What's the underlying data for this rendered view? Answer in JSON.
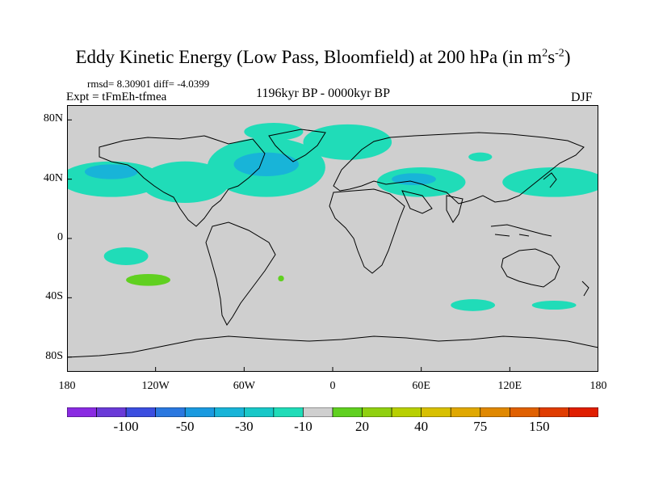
{
  "title": {
    "main": "Eddy Kinetic Energy (Low Pass, Bloomfield) at 200 hPa (in m",
    "sup1": "2",
    "mid": "s",
    "sup2": "-2",
    "end": ")"
  },
  "stats": "rmsd= 8.30901 diff= -4.0399",
  "experiment": "Expt = tFmEh-tfmea",
  "period": "1196kyr BP - 0000kyr BP",
  "season": "DJF",
  "axes": {
    "lat_ticks": [
      {
        "label": "80N",
        "value": 80
      },
      {
        "label": "40N",
        "value": 40
      },
      {
        "label": "0",
        "value": 0
      },
      {
        "label": "40S",
        "value": -40
      },
      {
        "label": "80S",
        "value": -80
      }
    ],
    "lon_ticks": [
      {
        "label": "180",
        "value": -180
      },
      {
        "label": "120W",
        "value": -120
      },
      {
        "label": "60W",
        "value": -60
      },
      {
        "label": "0",
        "value": 0
      },
      {
        "label": "60E",
        "value": 60
      },
      {
        "label": "120E",
        "value": 120
      },
      {
        "label": "180",
        "value": 180
      }
    ],
    "lat_range": [
      -90,
      90
    ],
    "lon_range": [
      -180,
      180
    ]
  },
  "colorbar": {
    "colors": [
      "#8a2be2",
      "#6a3ad8",
      "#3b4ee0",
      "#2a78e0",
      "#1a9ae0",
      "#18b4d8",
      "#18c8c8",
      "#20dcb8",
      "#cfcfcf",
      "#60d020",
      "#90d010",
      "#b8d000",
      "#d8c000",
      "#e0a800",
      "#e08800",
      "#e06000",
      "#e03c00",
      "#e01e00"
    ],
    "labels": [
      {
        "text": "-100",
        "index": 2
      },
      {
        "text": "-50",
        "index": 4
      },
      {
        "text": "-30",
        "index": 6
      },
      {
        "text": "-10",
        "index": 8
      },
      {
        "text": "20",
        "index": 10
      },
      {
        "text": "40",
        "index": 12
      },
      {
        "text": "75",
        "index": 14
      },
      {
        "text": "150",
        "index": 16
      }
    ]
  },
  "map_colors": {
    "background": "#cfcfcf",
    "cyan_light": "#20dcb8",
    "cyan_mid": "#18c8c8",
    "cyan_dark": "#18b4d8",
    "green": "#60d020",
    "coast": "#000000"
  },
  "anomaly_regions": [
    {
      "level": "cyan_light",
      "lon": -150,
      "lat": 40,
      "rlon": 35,
      "rlat": 12
    },
    {
      "level": "cyan_light",
      "lon": -100,
      "lat": 38,
      "rlon": 30,
      "rlat": 14
    },
    {
      "level": "cyan_light",
      "lon": -45,
      "lat": 48,
      "rlon": 40,
      "rlat": 20
    },
    {
      "level": "cyan_light",
      "lon": 10,
      "lat": 65,
      "rlon": 30,
      "rlat": 12
    },
    {
      "level": "cyan_light",
      "lon": 60,
      "lat": 38,
      "rlon": 30,
      "rlat": 10
    },
    {
      "level": "cyan_light",
      "lon": 150,
      "lat": 38,
      "rlon": 35,
      "rlat": 10
    },
    {
      "level": "cyan_light",
      "lon": -40,
      "lat": 72,
      "rlon": 20,
      "rlat": 6
    },
    {
      "level": "cyan_light",
      "lon": -140,
      "lat": -12,
      "rlon": 15,
      "rlat": 6
    },
    {
      "level": "cyan_light",
      "lon": 95,
      "lat": -45,
      "rlon": 15,
      "rlat": 4
    },
    {
      "level": "cyan_light",
      "lon": 150,
      "lat": -45,
      "rlon": 15,
      "rlat": 3
    },
    {
      "level": "cyan_light",
      "lon": 100,
      "lat": 55,
      "rlon": 8,
      "rlat": 3
    },
    {
      "level": "cyan_dark",
      "lon": -150,
      "lat": 45,
      "rlon": 18,
      "rlat": 5
    },
    {
      "level": "cyan_dark",
      "lon": -45,
      "lat": 50,
      "rlon": 22,
      "rlat": 8
    },
    {
      "level": "cyan_dark",
      "lon": 55,
      "lat": 40,
      "rlon": 15,
      "rlat": 4
    },
    {
      "level": "green",
      "lon": -125,
      "lat": -28,
      "rlon": 15,
      "rlat": 4
    },
    {
      "level": "green",
      "lon": -35,
      "lat": -27,
      "rlon": 2,
      "rlat": 2
    }
  ]
}
